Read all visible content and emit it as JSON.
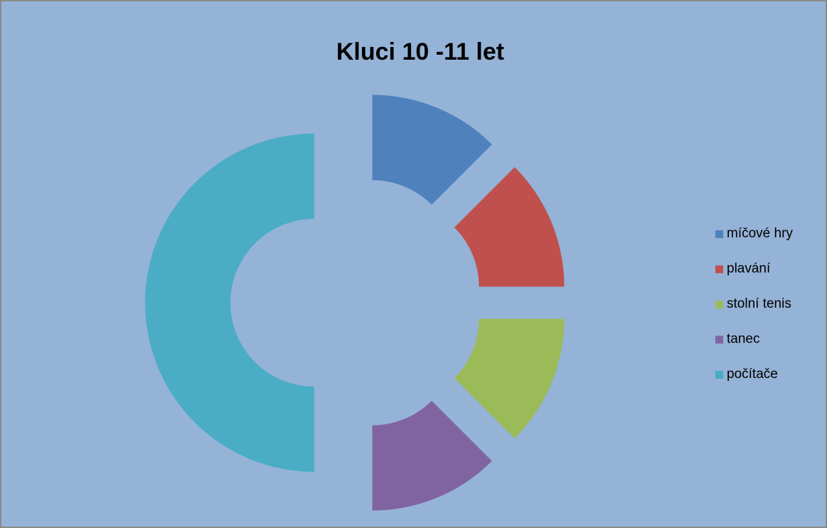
{
  "chart_data": {
    "type": "doughnut",
    "title": "Kluci 10 -11 let",
    "categories": [
      "míčové hry",
      "plavání",
      "stolní tenis",
      "tanec",
      "počítače"
    ],
    "values": [
      12.5,
      12.5,
      12.5,
      12.5,
      50
    ],
    "colors": [
      "#4f81bd",
      "#c0504d",
      "#9bbb59",
      "#8064a2",
      "#4bacc6"
    ],
    "exploded": true,
    "legend": "right"
  }
}
